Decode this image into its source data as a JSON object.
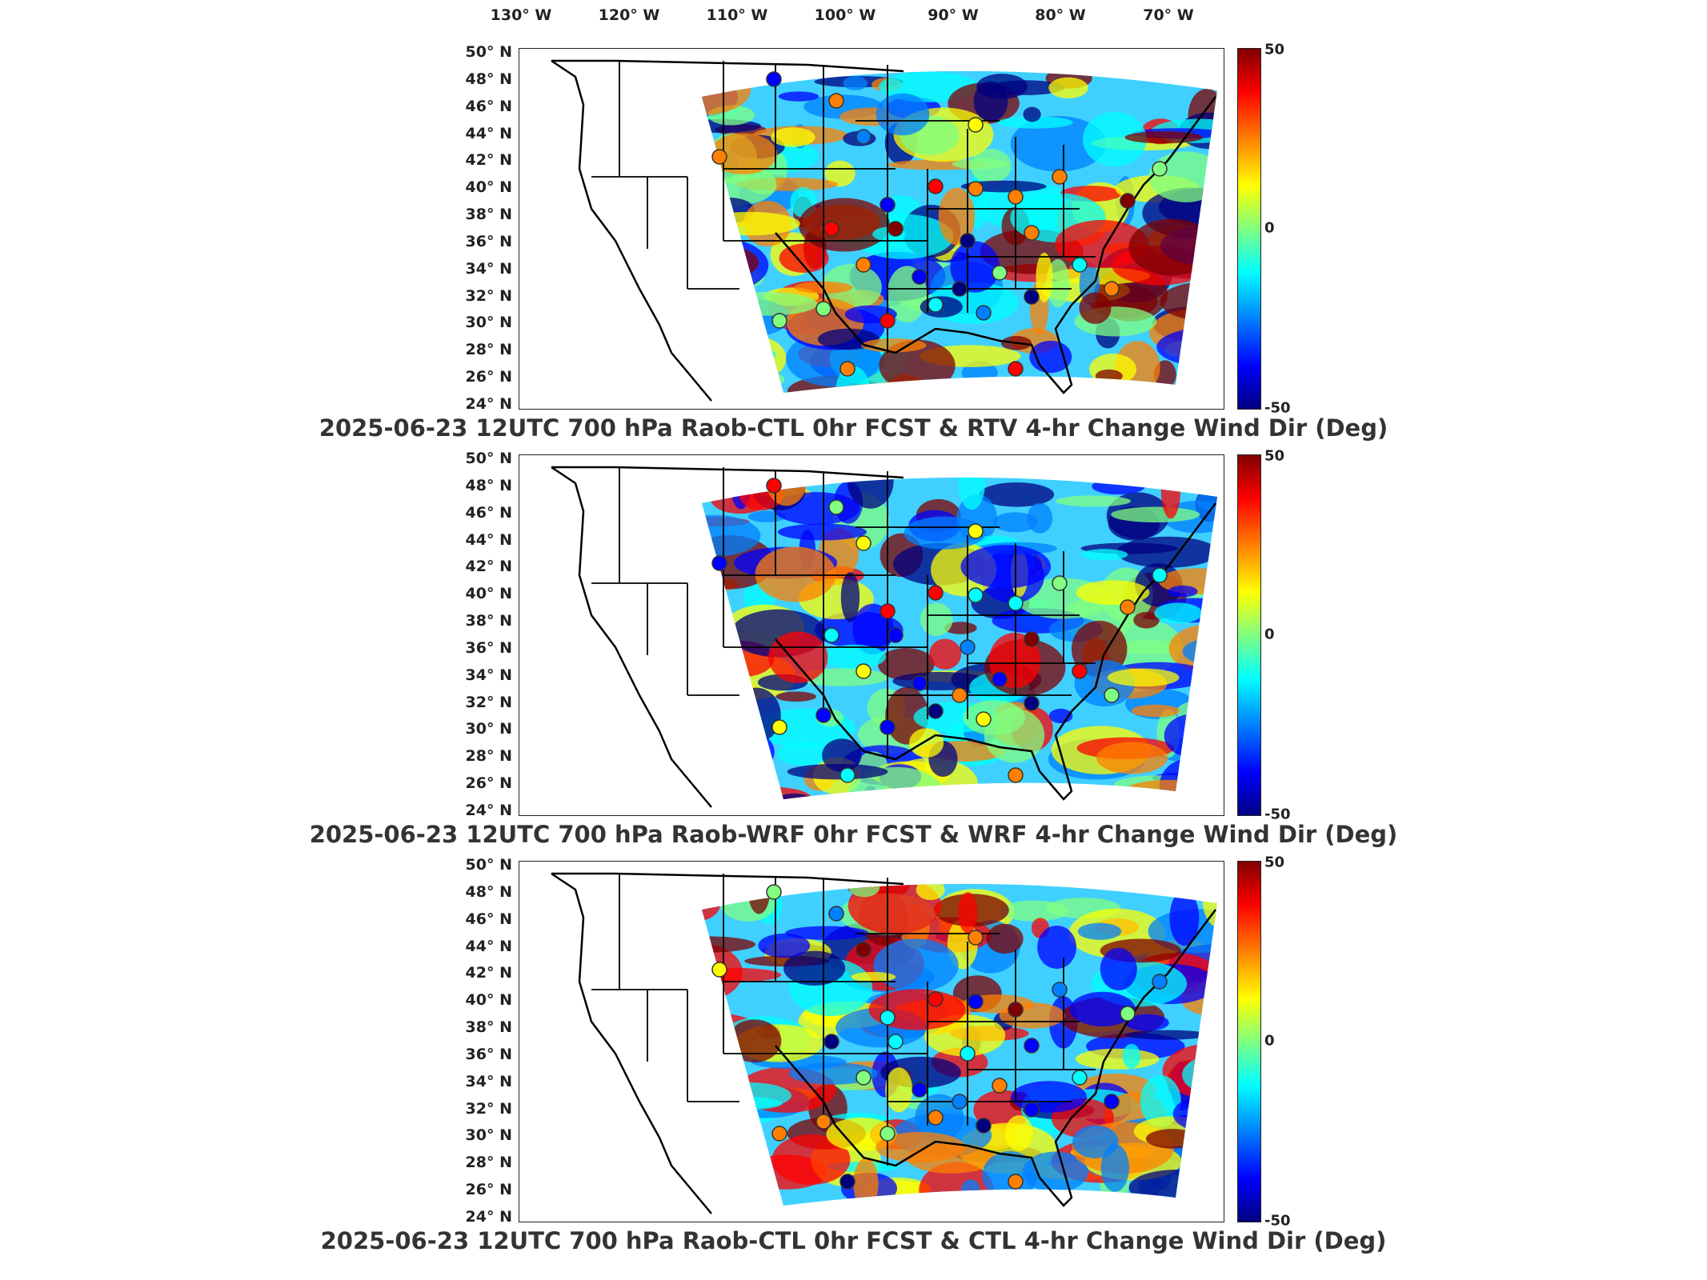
{
  "lon_labels": [
    "130° W",
    "120° W",
    "110° W",
    "100° W",
    "90° W",
    "80° W",
    "70° W"
  ],
  "lat_labels": [
    "50° N",
    "48° N",
    "46° N",
    "44° N",
    "42° N",
    "40° N",
    "38° N",
    "36° N",
    "34° N",
    "32° N",
    "30° N",
    "28° N",
    "26° N",
    "24° N"
  ],
  "colorbar": {
    "max_label": "50",
    "mid_label": "0",
    "min_label": "-50",
    "range": [
      -50,
      50
    ],
    "colormap": "jet"
  },
  "panels": [
    {
      "title": "2025-06-23 12UTC 700 hPa Raob-CTL 0hr FCST & RTV 4-hr Change Wind Dir (Deg)"
    },
    {
      "title": "2025-06-23 12UTC 700 hPa Raob-WRF 0hr FCST & WRF 4-hr Change Wind Dir (Deg)"
    },
    {
      "title": "2025-06-23 12UTC 700 hPa Raob-CTL 0hr FCST & CTL 4-hr Change Wind Dir (Deg)"
    }
  ],
  "colors": {
    "frame": "#222222",
    "land_outline": "#000000"
  }
}
